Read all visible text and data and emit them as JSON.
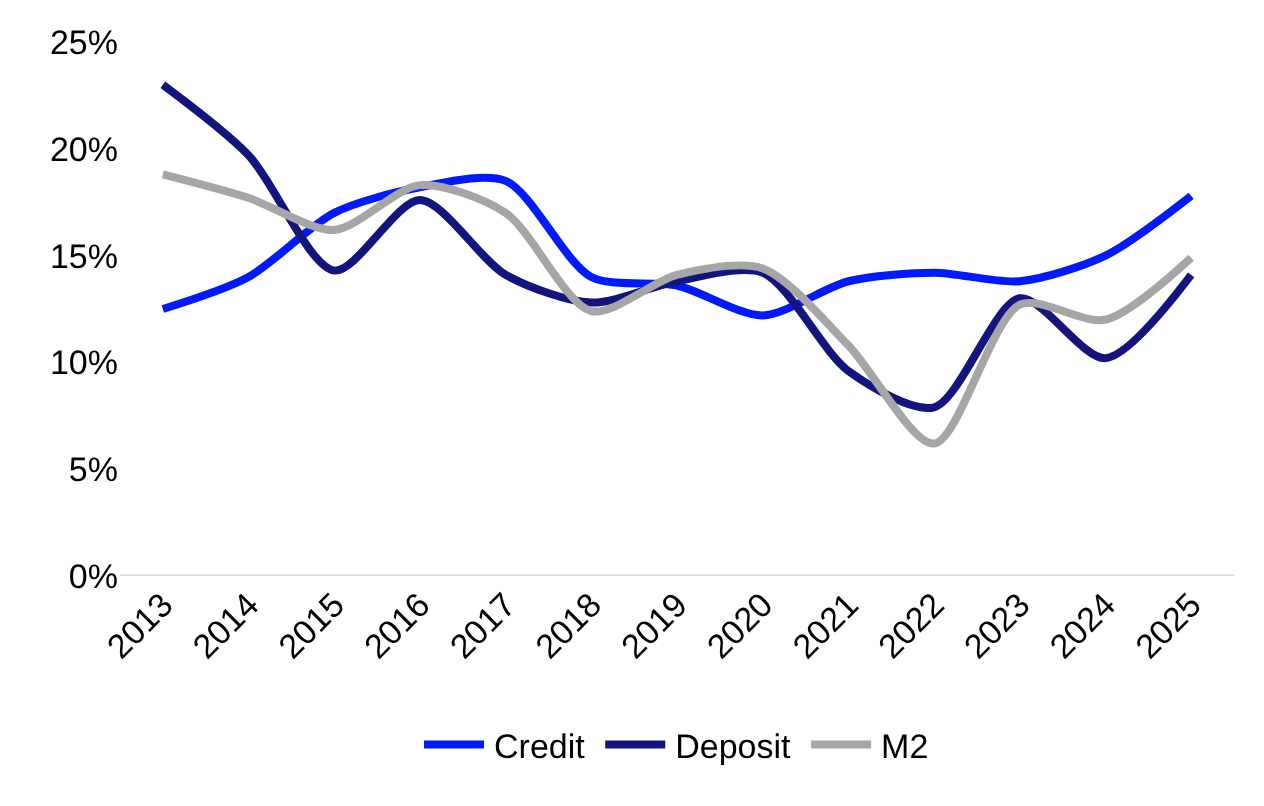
{
  "chart_data": {
    "type": "line",
    "categories": [
      "2013",
      "2014",
      "2015",
      "2016",
      "2017",
      "2018",
      "2019",
      "2020",
      "2021",
      "2022",
      "2023",
      "2024",
      "2025"
    ],
    "series": [
      {
        "name": "Credit",
        "color": "#0019ff",
        "values": [
          12.5,
          14.0,
          17.0,
          18.2,
          18.5,
          14.0,
          13.6,
          12.2,
          13.8,
          14.2,
          13.8,
          15.0,
          17.8
        ]
      },
      {
        "name": "Deposit",
        "color": "#14147e",
        "values": [
          23.0,
          19.7,
          14.3,
          17.6,
          14.1,
          12.8,
          13.8,
          14.2,
          9.6,
          7.9,
          13.0,
          10.2,
          14.1
        ]
      },
      {
        "name": "M2",
        "color": "#a6a6a6",
        "values": [
          18.8,
          17.7,
          16.2,
          18.3,
          17.0,
          12.4,
          14.1,
          14.4,
          10.8,
          6.2,
          12.7,
          12.0,
          14.9
        ]
      }
    ],
    "ylim": [
      0,
      25
    ],
    "yticks": [
      {
        "value": 0,
        "label": "0%"
      },
      {
        "value": 5,
        "label": "5%"
      },
      {
        "value": 10,
        "label": "10%"
      },
      {
        "value": 15,
        "label": "15%"
      },
      {
        "value": 20,
        "label": "20%"
      },
      {
        "value": 25,
        "label": "25%"
      }
    ],
    "legend": "bottom",
    "marker": "none",
    "line_style": "solid"
  }
}
